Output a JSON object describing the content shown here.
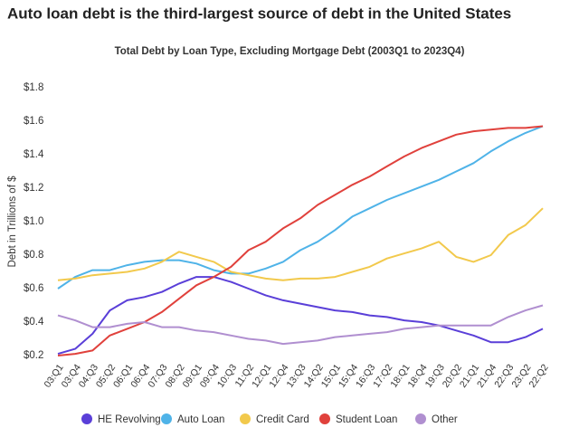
{
  "chart_data": {
    "type": "line",
    "title": "Auto loan debt is the third-largest source of debt in the United States",
    "subtitle": "Total Debt by Loan Type, Excluding Mortgage Debt (2003Q1 to 2023Q4)",
    "y_label": "Debt in Trillions of $",
    "categories": [
      "03:Q1",
      "03:Q4",
      "04:Q3",
      "05:Q2",
      "06:Q1",
      "06:Q4",
      "07:Q3",
      "08:Q2",
      "09:Q1",
      "09:Q4",
      "10:Q3",
      "11:Q2",
      "12:Q1",
      "12:Q4",
      "13:Q3",
      "14:Q2",
      "15:Q1",
      "15:Q4",
      "16:Q3",
      "17:Q2",
      "18:Q1",
      "18:Q4",
      "19:Q3",
      "20:Q2",
      "21:Q1",
      "21:Q4",
      "22:Q3",
      "23:Q2",
      "22:Q2"
    ],
    "series": [
      {
        "name": "HE Revolving",
        "color": "#5a3fd8",
        "values": [
          0.21,
          0.24,
          0.33,
          0.47,
          0.53,
          0.55,
          0.58,
          0.63,
          0.67,
          0.67,
          0.64,
          0.6,
          0.56,
          0.53,
          0.51,
          0.49,
          0.47,
          0.46,
          0.44,
          0.43,
          0.41,
          0.4,
          0.38,
          0.35,
          0.32,
          0.28,
          0.28,
          0.31,
          0.36
        ]
      },
      {
        "name": "Auto Loan",
        "color": "#4fb3e8",
        "values": [
          0.6,
          0.67,
          0.71,
          0.71,
          0.74,
          0.76,
          0.77,
          0.77,
          0.75,
          0.71,
          0.69,
          0.69,
          0.72,
          0.76,
          0.83,
          0.88,
          0.95,
          1.03,
          1.08,
          1.13,
          1.17,
          1.21,
          1.25,
          1.3,
          1.35,
          1.42,
          1.48,
          1.53,
          1.57
        ]
      },
      {
        "name": "Credit Card",
        "color": "#f2c94c",
        "values": [
          0.65,
          0.66,
          0.68,
          0.69,
          0.7,
          0.72,
          0.76,
          0.82,
          0.79,
          0.76,
          0.7,
          0.68,
          0.66,
          0.65,
          0.66,
          0.66,
          0.67,
          0.7,
          0.73,
          0.78,
          0.81,
          0.84,
          0.88,
          0.79,
          0.76,
          0.8,
          0.92,
          0.98,
          1.08
        ]
      },
      {
        "name": "Student Loan",
        "color": "#e0413c",
        "values": [
          0.2,
          0.21,
          0.23,
          0.32,
          0.36,
          0.4,
          0.46,
          0.54,
          0.62,
          0.67,
          0.73,
          0.83,
          0.88,
          0.96,
          1.02,
          1.1,
          1.16,
          1.22,
          1.27,
          1.33,
          1.39,
          1.44,
          1.48,
          1.52,
          1.54,
          1.55,
          1.56,
          1.56,
          1.57
        ]
      },
      {
        "name": "Other",
        "color": "#b08fd0",
        "values": [
          0.44,
          0.41,
          0.37,
          0.37,
          0.39,
          0.4,
          0.37,
          0.37,
          0.35,
          0.34,
          0.32,
          0.3,
          0.29,
          0.27,
          0.28,
          0.29,
          0.31,
          0.32,
          0.33,
          0.34,
          0.36,
          0.37,
          0.38,
          0.38,
          0.38,
          0.38,
          0.43,
          0.47,
          0.5
        ]
      }
    ],
    "ylim": [
      0.2,
      1.8
    ],
    "yticks": [
      {
        "value": 0.2,
        "label": "$0.2"
      },
      {
        "value": 0.4,
        "label": "$0.4"
      },
      {
        "value": 0.6,
        "label": "$0.6"
      },
      {
        "value": 0.8,
        "label": "$0.8"
      },
      {
        "value": 1.0,
        "label": "$1.0"
      },
      {
        "value": 1.2,
        "label": "$1.2"
      },
      {
        "value": 1.4,
        "label": "$1.4"
      },
      {
        "value": 1.6,
        "label": "$1.6"
      },
      {
        "value": 1.8,
        "label": "$1.8"
      }
    ],
    "grid": false,
    "legend": "bottom"
  }
}
